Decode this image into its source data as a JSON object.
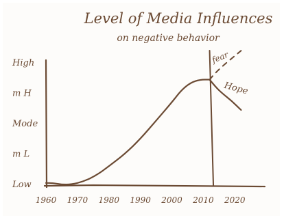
{
  "chart_data": {
    "type": "line",
    "title": "Level of Media Influences",
    "subtitle": "on negative behavior",
    "xlabel": "",
    "ylabel": "",
    "x_ticks": [
      "1960",
      "1970",
      "1980",
      "1990",
      "2000",
      "2010",
      "2020"
    ],
    "y_ticks": [
      "Low",
      "m L",
      "Mode",
      "m H",
      "High"
    ],
    "xlim": [
      1960,
      2023
    ],
    "ylim": [
      0,
      4
    ],
    "series": [
      {
        "values": [
          {
            "x": 1960,
            "y": 0.05
          },
          {
            "x": 1962,
            "y": 0.05
          },
          {
            "x": 1965,
            "y": 0.0
          },
          {
            "x": 1968,
            "y": 0.0
          },
          {
            "x": 1972,
            "y": 0.1
          },
          {
            "x": 1976,
            "y": 0.3
          },
          {
            "x": 1980,
            "y": 0.6
          },
          {
            "x": 1985,
            "y": 1.0
          },
          {
            "x": 1990,
            "y": 1.5
          },
          {
            "x": 1995,
            "y": 2.1
          },
          {
            "x": 2000,
            "y": 2.7
          },
          {
            "x": 2003,
            "y": 3.1
          },
          {
            "x": 2006,
            "y": 3.35
          },
          {
            "x": 2009,
            "y": 3.45
          },
          {
            "x": 2012,
            "y": 3.45
          }
        ]
      },
      {
        "name": "Hope",
        "values": [
          {
            "x": 2012,
            "y": 3.45
          },
          {
            "x": 2014,
            "y": 3.2
          },
          {
            "x": 2016,
            "y": 3.0
          },
          {
            "x": 2019,
            "y": 2.75
          },
          {
            "x": 2022,
            "y": 2.45
          }
        ]
      },
      {
        "name": "fear",
        "style": "dashed",
        "values": [
          {
            "x": 2012,
            "y": 3.45
          },
          {
            "x": 2015,
            "y": 3.8
          },
          {
            "x": 2022,
            "y": 4.4
          }
        ]
      }
    ],
    "annotations": [
      "Hope",
      "fear"
    ],
    "grid": false,
    "legend": "none"
  },
  "colors": {
    "ink": "#6b4a33",
    "paper": "#fdfcfa"
  }
}
